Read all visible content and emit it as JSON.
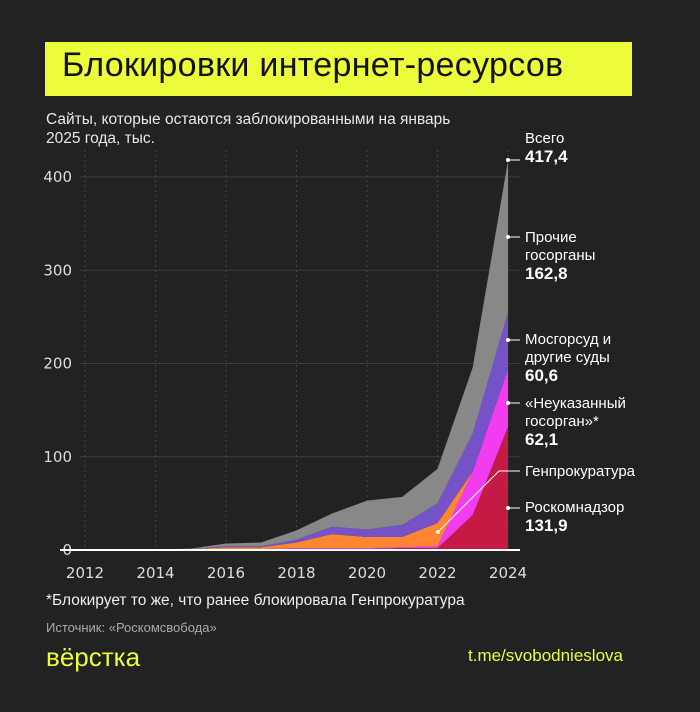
{
  "header": {
    "title": "Блокировки интернет-ресурсов",
    "subtitle": "Сайты, которые остаются заблокированными на январь 2025 года, тыс."
  },
  "chart_data": {
    "type": "area",
    "stacked": true,
    "x": [
      2012,
      2013,
      2014,
      2015,
      2016,
      2017,
      2018,
      2019,
      2020,
      2021,
      2022,
      2023,
      2024
    ],
    "x_ticks": [
      "2012",
      "2014",
      "2016",
      "2018",
      "2020",
      "2022",
      "2024"
    ],
    "y_ticks": [
      "0",
      "100",
      "200",
      "300",
      "400"
    ],
    "ylim": [
      0,
      420
    ],
    "grid": true,
    "series": [
      {
        "name": "Роскомнадзор",
        "color": "#c41a44",
        "values": [
          0,
          0,
          0.1,
          0.2,
          0.5,
          0.5,
          1,
          1,
          1,
          2,
          2,
          37.5,
          131.9
        ],
        "label_value": "131,9"
      },
      {
        "name": "«Неуказанный госорган»*",
        "color": "#f23cf0",
        "values": [
          0,
          0,
          0,
          0.1,
          0.5,
          0.5,
          1,
          1,
          1,
          1,
          2,
          46.5,
          62.1
        ],
        "label_value": "62,1"
      },
      {
        "name": "Генпрокуратура",
        "color": "#ff8533",
        "values": [
          0,
          0.1,
          0.2,
          0.5,
          2,
          2,
          6,
          15,
          12,
          11,
          25,
          0,
          0
        ],
        "label_value": ""
      },
      {
        "name": "Мосгорсуд и другие суды",
        "color": "#7652c8",
        "values": [
          0,
          0.1,
          0.1,
          0.2,
          1,
          1,
          3,
          8,
          8,
          13,
          21,
          41,
          60.6
        ],
        "label_value": "60,6"
      },
      {
        "name": "Прочие госорганы",
        "color": "#888888",
        "values": [
          0,
          0.1,
          0.1,
          0.5,
          3,
          4,
          10,
          14,
          31,
          30,
          37,
          71,
          162.8
        ],
        "label_value": "162,8"
      }
    ],
    "total": {
      "name": "Всего",
      "value": "417,4"
    }
  },
  "labels": {
    "total_name": "Всего",
    "total_value": "417,4",
    "other_name": "Прочие госорганы",
    "other_value": "162,8",
    "courts_name": "Мосгорсуд и другие суды",
    "courts_value": "60,6",
    "unspec_name": "«Неуказанный госорган»*",
    "unspec_value": "62,1",
    "genprok_name": "Генпрокуратура",
    "rkn_name": "Роскомнадзор",
    "rkn_value": "131,9"
  },
  "footer": {
    "note": "*Блокирует то же, что ранее блокировала Генпрокуратура",
    "source": "Источник: «Роскомсвобода»",
    "logo": "вёрстка",
    "link": "t.me/svobodnieslova"
  }
}
